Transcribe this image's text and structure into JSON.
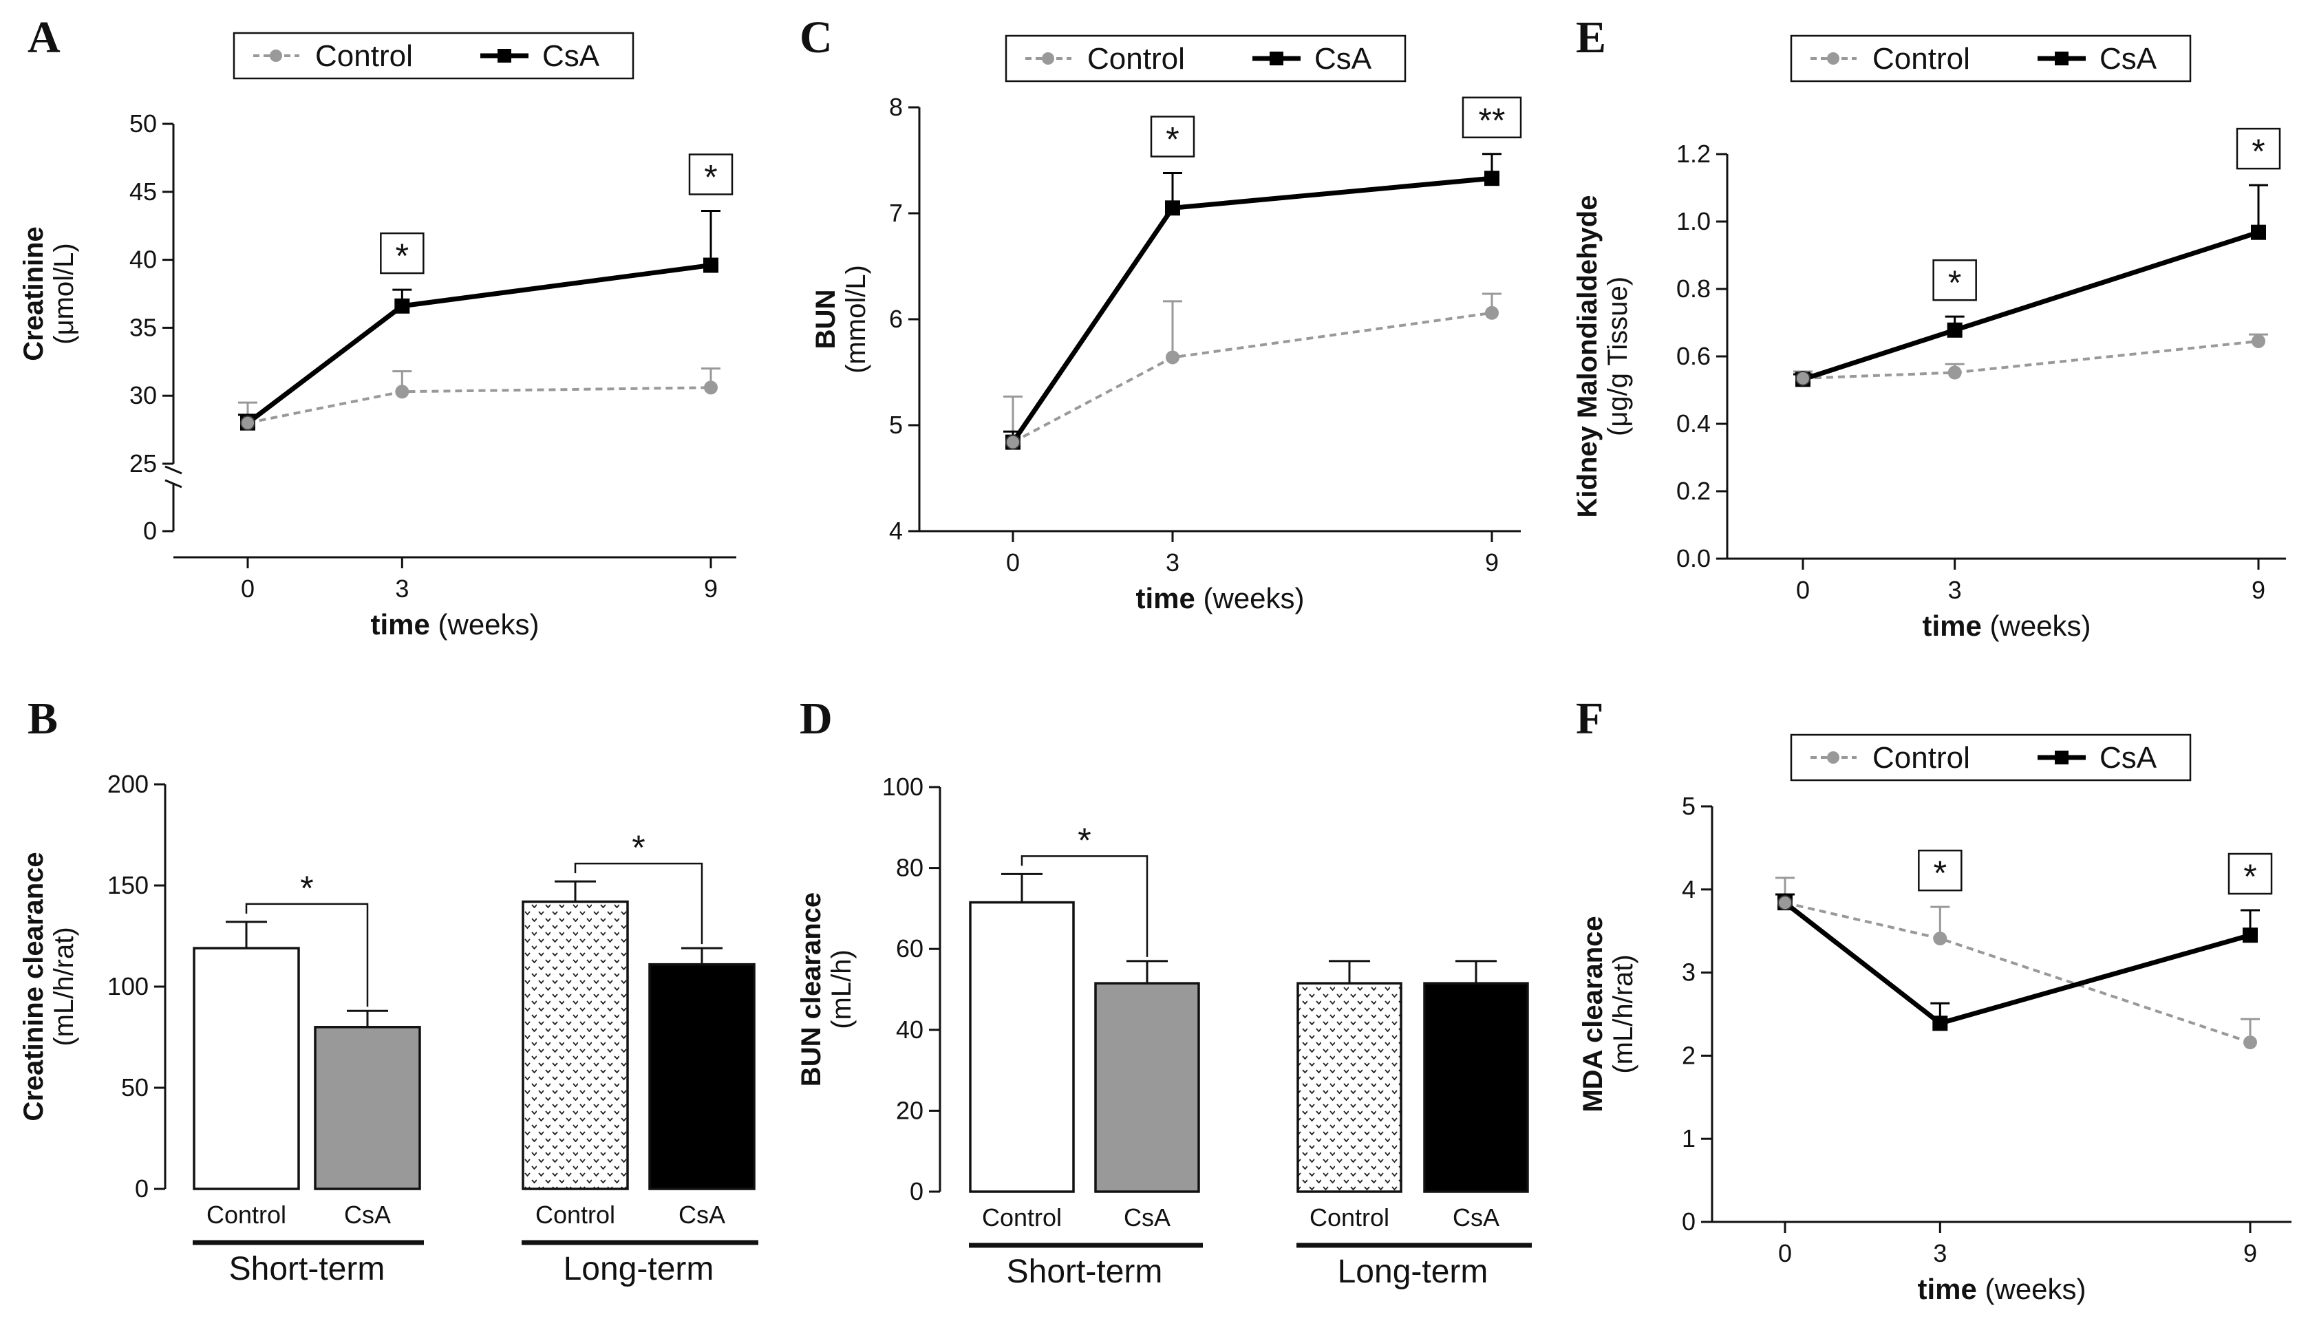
{
  "legend": {
    "control": "Control",
    "csa": "CsA"
  },
  "colors": {
    "control": "#999999",
    "csa": "#000000",
    "bar_gray": "#999999"
  },
  "units": {
    "umol": "(μmol/L)",
    "mmol": "(mmol/L)",
    "ugg": "(μg/g Tissue)",
    "mlhrat": "(mL/h/rat)",
    "mlh": "(mL/h)",
    "weeks": " (weeks)"
  },
  "chart_data": [
    {
      "id": "A",
      "letter": "A",
      "type": "line",
      "ylabel_bold": "Creatinine",
      "ylabel_unit": "(μmol/L)",
      "xlabel_bold": "time",
      "xlabel_unit": "(weeks)",
      "x": [
        0,
        3,
        9
      ],
      "xticks": [
        "0",
        "3",
        "9"
      ],
      "ylim": [
        25,
        50
      ],
      "yticks": [
        "25",
        "30",
        "35",
        "40",
        "45",
        "50"
      ],
      "ybreak_tick": "0",
      "series": [
        {
          "name": "Control",
          "values": [
            28.0,
            30.3,
            30.6
          ],
          "err": [
            1.5,
            1.5,
            1.4
          ]
        },
        {
          "name": "CsA",
          "values": [
            28.0,
            36.6,
            39.6
          ],
          "err": [
            0.6,
            1.2,
            4.0
          ]
        }
      ],
      "annotations": [
        {
          "x": 3,
          "text": "*"
        },
        {
          "x": 9,
          "text": "*"
        }
      ]
    },
    {
      "id": "C",
      "letter": "C",
      "type": "line",
      "ylabel_bold": "BUN",
      "ylabel_unit": "(mmol/L)",
      "xlabel_bold": "time",
      "xlabel_unit": "(weeks)",
      "x": [
        0,
        3,
        9
      ],
      "xticks": [
        "0",
        "3",
        "9"
      ],
      "ylim": [
        4,
        8
      ],
      "yticks": [
        "4",
        "5",
        "6",
        "7",
        "8"
      ],
      "series": [
        {
          "name": "Control",
          "values": [
            4.84,
            5.64,
            6.06
          ],
          "err": [
            0.43,
            0.53,
            0.18
          ]
        },
        {
          "name": "CsA",
          "values": [
            4.84,
            7.05,
            7.33
          ],
          "err": [
            0.1,
            0.33,
            0.23
          ]
        }
      ],
      "annotations": [
        {
          "x": 3,
          "text": "*"
        },
        {
          "x": 9,
          "text": "**"
        }
      ]
    },
    {
      "id": "E",
      "letter": "E",
      "type": "line",
      "ylabel_bold": "Kidney Malondialdehyde",
      "ylabel_unit": "(μg/g Tissue)",
      "xlabel_bold": "time",
      "xlabel_unit": "(weeks)",
      "x": [
        0,
        3,
        9
      ],
      "xticks": [
        "0",
        "3",
        "9"
      ],
      "ylim": [
        0,
        1.2
      ],
      "yticks": [
        "0.0",
        "0.2",
        "0.4",
        "0.6",
        "0.8",
        "1.0",
        "1.2"
      ],
      "series": [
        {
          "name": "Control",
          "values": [
            0.535,
            0.552,
            0.645
          ],
          "err": [
            0.02,
            0.025,
            0.02
          ]
        },
        {
          "name": "CsA",
          "values": [
            0.532,
            0.678,
            0.968
          ],
          "err": [
            0.015,
            0.04,
            0.14
          ]
        }
      ],
      "annotations": [
        {
          "x": 3,
          "text": "*"
        },
        {
          "x": 9,
          "text": "*"
        }
      ]
    },
    {
      "id": "F",
      "letter": "F",
      "type": "line",
      "ylabel_bold": "MDA clearance",
      "ylabel_unit": "(mL/h/rat)",
      "xlabel_bold": "time",
      "xlabel_unit": "(weeks)",
      "x": [
        0,
        3,
        9
      ],
      "xticks": [
        "0",
        "3",
        "9"
      ],
      "ylim": [
        0,
        5
      ],
      "yticks": [
        "0",
        "1",
        "2",
        "3",
        "4",
        "5"
      ],
      "series": [
        {
          "name": "Control",
          "values": [
            3.84,
            3.41,
            2.16
          ],
          "err": [
            0.3,
            0.38,
            0.28
          ]
        },
        {
          "name": "CsA",
          "values": [
            3.84,
            2.39,
            3.45
          ],
          "err": [
            0.1,
            0.24,
            0.3
          ]
        }
      ],
      "annotations": [
        {
          "x": 3,
          "text": "*"
        },
        {
          "x": 9,
          "text": "*"
        }
      ]
    },
    {
      "id": "B",
      "letter": "B",
      "type": "bar",
      "ylabel_bold": "Creatinine clearance",
      "ylabel_unit": "(mL/h/rat)",
      "ylim": [
        0,
        200
      ],
      "yticks": [
        "0",
        "50",
        "100",
        "150",
        "200"
      ],
      "groups": [
        {
          "label": "Short-term",
          "bars": [
            {
              "label": "Control",
              "value": 119,
              "err": 13,
              "style": "white"
            },
            {
              "label": "CsA",
              "value": 80,
              "err": 8,
              "style": "gray"
            }
          ],
          "significance": "*"
        },
        {
          "label": "Long-term",
          "bars": [
            {
              "label": "Control",
              "value": 142,
              "err": 10,
              "style": "dots"
            },
            {
              "label": "CsA",
              "value": 111,
              "err": 8,
              "style": "black"
            }
          ],
          "significance": "*"
        }
      ]
    },
    {
      "id": "D",
      "letter": "D",
      "type": "bar",
      "ylabel_bold": "BUN clearance",
      "ylabel_unit": "(mL/h)",
      "ylim": [
        0,
        100
      ],
      "yticks": [
        "0",
        "20",
        "40",
        "60",
        "80",
        "100"
      ],
      "groups": [
        {
          "label": "Short-term",
          "bars": [
            {
              "label": "Control",
              "value": 71.5,
              "err": 7,
              "style": "white"
            },
            {
              "label": "CsA",
              "value": 51.5,
              "err": 5.5,
              "style": "gray"
            }
          ],
          "significance": "*"
        },
        {
          "label": "Long-term",
          "bars": [
            {
              "label": "Control",
              "value": 51.5,
              "err": 5.5,
              "style": "dots"
            },
            {
              "label": "CsA",
              "value": 51.5,
              "err": 5.5,
              "style": "black"
            }
          ],
          "significance": ""
        }
      ]
    }
  ]
}
